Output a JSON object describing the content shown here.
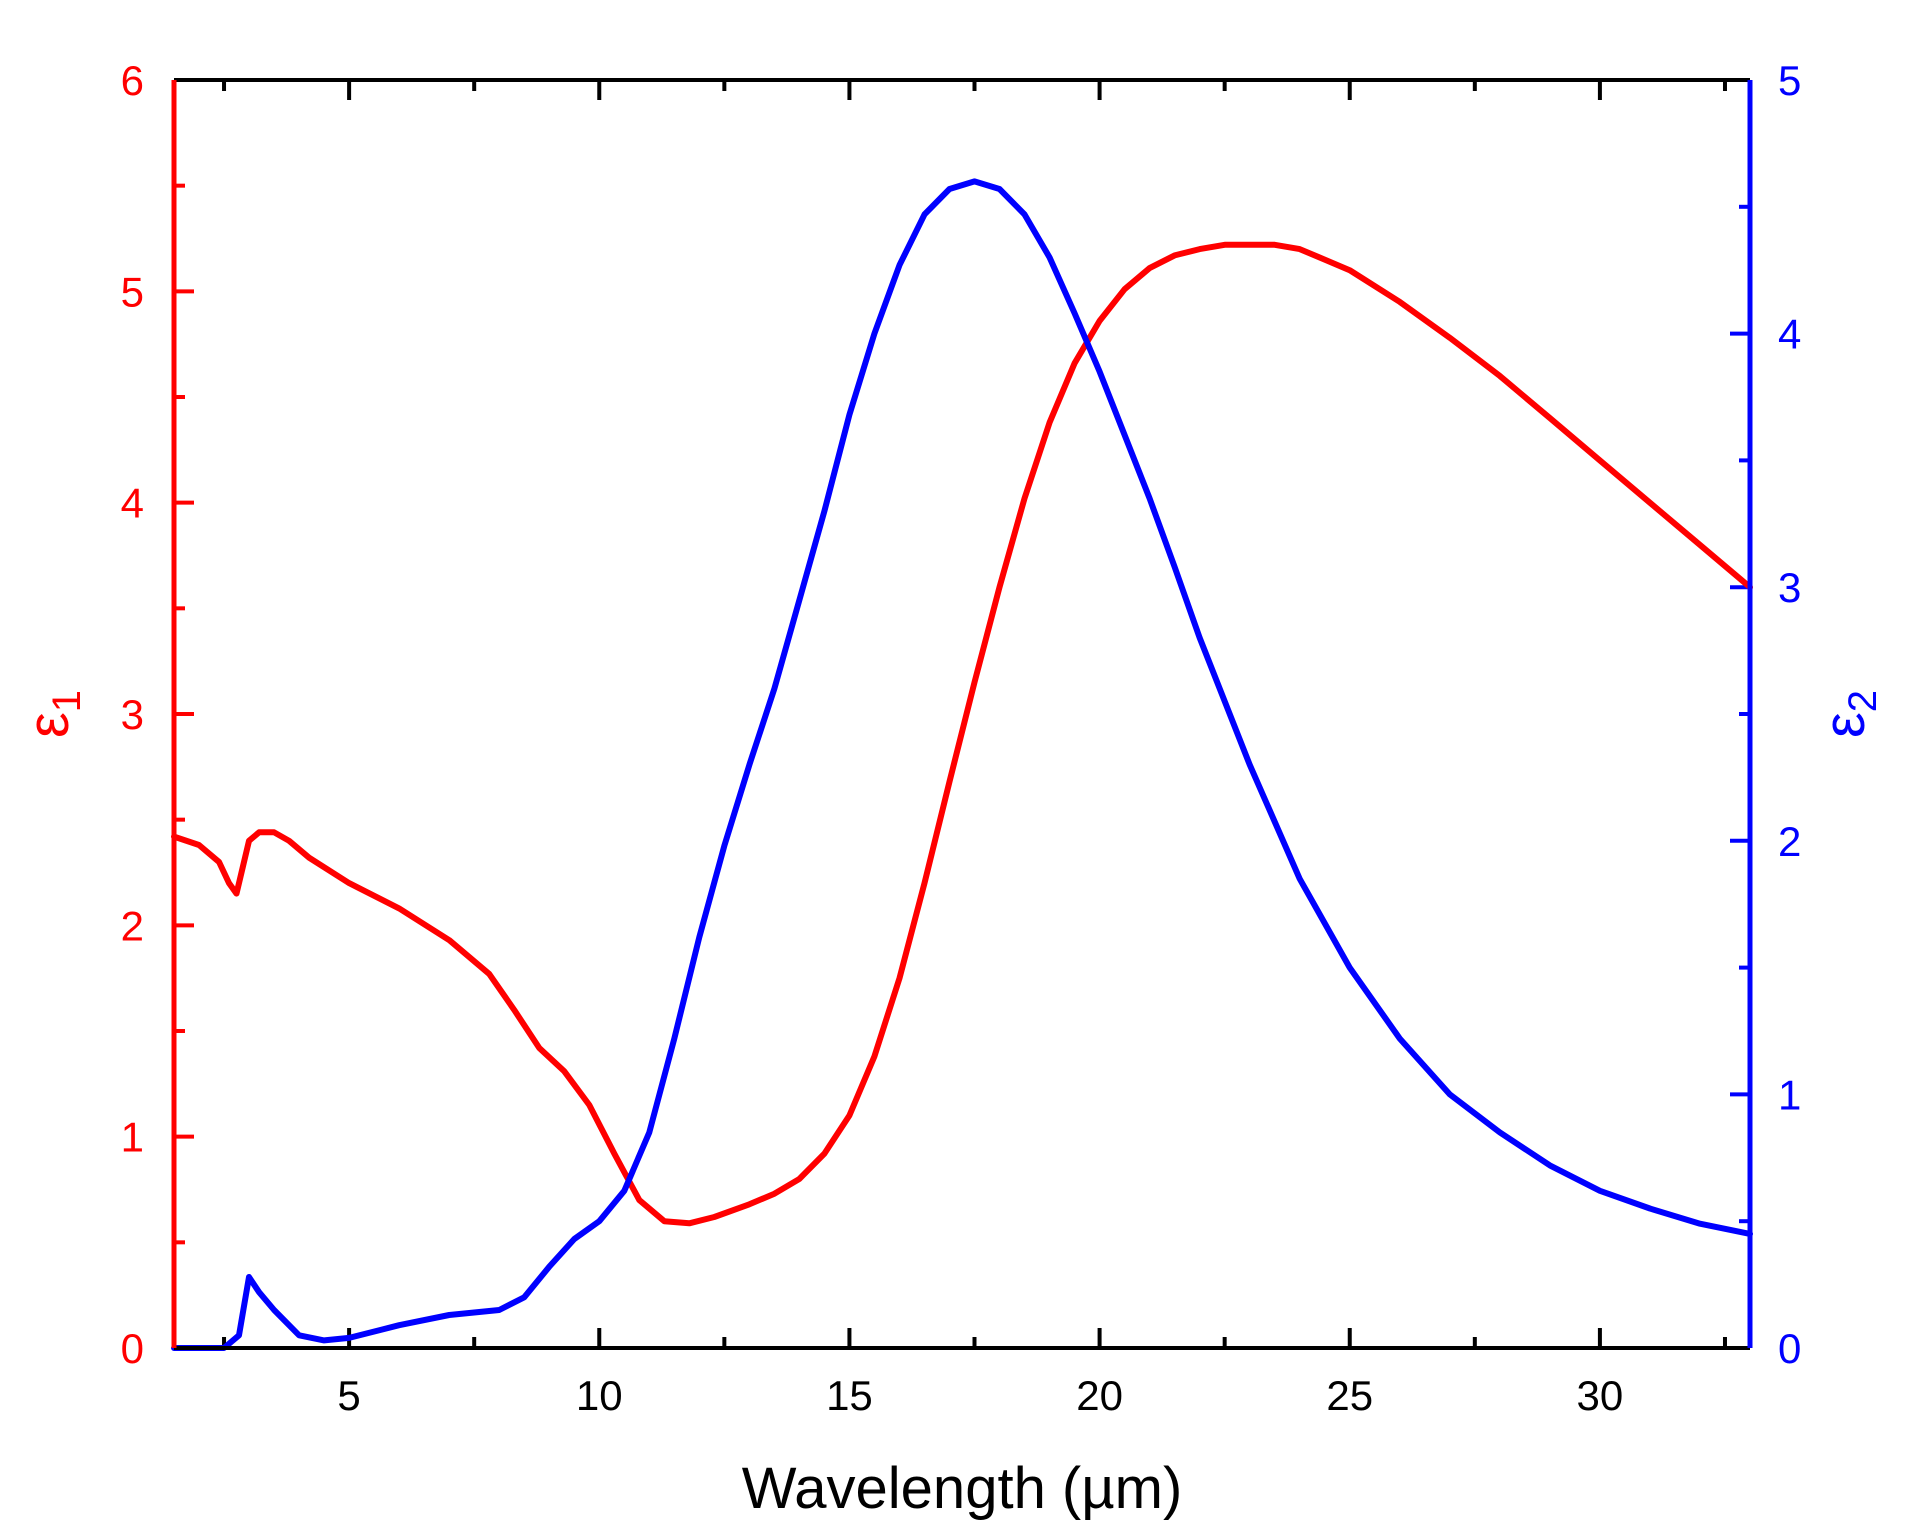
{
  "chart_data": {
    "type": "line",
    "xlabel": "Wavelength (µm)",
    "xlim": [
      1.5,
      33
    ],
    "x_ticks": [
      5,
      10,
      15,
      20,
      25,
      30
    ],
    "y_left": {
      "label_main": "ε",
      "label_sub": "1",
      "lim": [
        0,
        6
      ],
      "ticks": [
        0,
        1,
        2,
        3,
        4,
        5,
        6
      ],
      "color": "#ff0000"
    },
    "y_right": {
      "label_main": "ε",
      "label_sub": "2",
      "lim": [
        0,
        5
      ],
      "ticks": [
        0,
        1,
        2,
        3,
        4,
        5
      ],
      "color": "#0000ff"
    },
    "series": [
      {
        "name": "ε1",
        "axis": "left",
        "color": "#ff0000",
        "x": [
          1.5,
          2.0,
          2.4,
          2.6,
          2.75,
          2.85,
          3.0,
          3.2,
          3.5,
          3.8,
          4.2,
          5.0,
          6.0,
          7.0,
          7.8,
          8.3,
          8.8,
          9.3,
          9.8,
          10.3,
          10.8,
          11.3,
          11.8,
          12.3,
          13.0,
          13.5,
          14.0,
          14.5,
          15.0,
          15.5,
          16.0,
          16.5,
          17.0,
          17.5,
          18.0,
          18.5,
          19.0,
          19.5,
          20.0,
          20.5,
          21.0,
          21.5,
          22.0,
          22.5,
          23.0,
          23.5,
          24.0,
          24.5,
          25.0,
          26.0,
          27.0,
          28.0,
          29.0,
          30.0,
          31.0,
          32.0,
          33.0
        ],
        "y": [
          2.42,
          2.38,
          2.3,
          2.2,
          2.15,
          2.25,
          2.4,
          2.44,
          2.44,
          2.4,
          2.32,
          2.2,
          2.08,
          1.93,
          1.77,
          1.6,
          1.42,
          1.31,
          1.15,
          0.92,
          0.7,
          0.6,
          0.59,
          0.62,
          0.68,
          0.73,
          0.8,
          0.92,
          1.1,
          1.38,
          1.75,
          2.2,
          2.68,
          3.15,
          3.6,
          4.02,
          4.38,
          4.66,
          4.86,
          5.01,
          5.11,
          5.17,
          5.2,
          5.22,
          5.22,
          5.22,
          5.2,
          5.15,
          5.1,
          4.95,
          4.78,
          4.6,
          4.4,
          4.2,
          4.0,
          3.8,
          3.6
        ]
      },
      {
        "name": "ε2",
        "axis": "right",
        "color": "#0000ff",
        "x": [
          1.5,
          2.5,
          2.8,
          3.0,
          3.2,
          3.5,
          4.0,
          4.5,
          5.0,
          6.0,
          7.0,
          8.0,
          8.5,
          9.0,
          9.5,
          10.0,
          10.5,
          11.0,
          11.5,
          12.0,
          12.5,
          13.0,
          13.5,
          14.0,
          14.5,
          15.0,
          15.5,
          16.0,
          16.5,
          17.0,
          17.5,
          18.0,
          18.5,
          19.0,
          19.5,
          20.0,
          20.5,
          21.0,
          21.5,
          22.0,
          22.5,
          23.0,
          24.0,
          25.0,
          26.0,
          27.0,
          28.0,
          29.0,
          30.0,
          31.0,
          32.0,
          33.0
        ],
        "y": [
          0.0,
          0.0,
          0.05,
          0.28,
          0.22,
          0.15,
          0.05,
          0.03,
          0.04,
          0.09,
          0.13,
          0.15,
          0.2,
          0.32,
          0.43,
          0.5,
          0.62,
          0.85,
          1.22,
          1.62,
          1.98,
          2.3,
          2.6,
          2.95,
          3.3,
          3.68,
          4.0,
          4.27,
          4.47,
          4.57,
          4.6,
          4.57,
          4.47,
          4.3,
          4.08,
          3.85,
          3.6,
          3.35,
          3.08,
          2.8,
          2.55,
          2.3,
          1.85,
          1.5,
          1.22,
          1.0,
          0.85,
          0.72,
          0.62,
          0.55,
          0.49,
          0.45
        ]
      }
    ]
  }
}
